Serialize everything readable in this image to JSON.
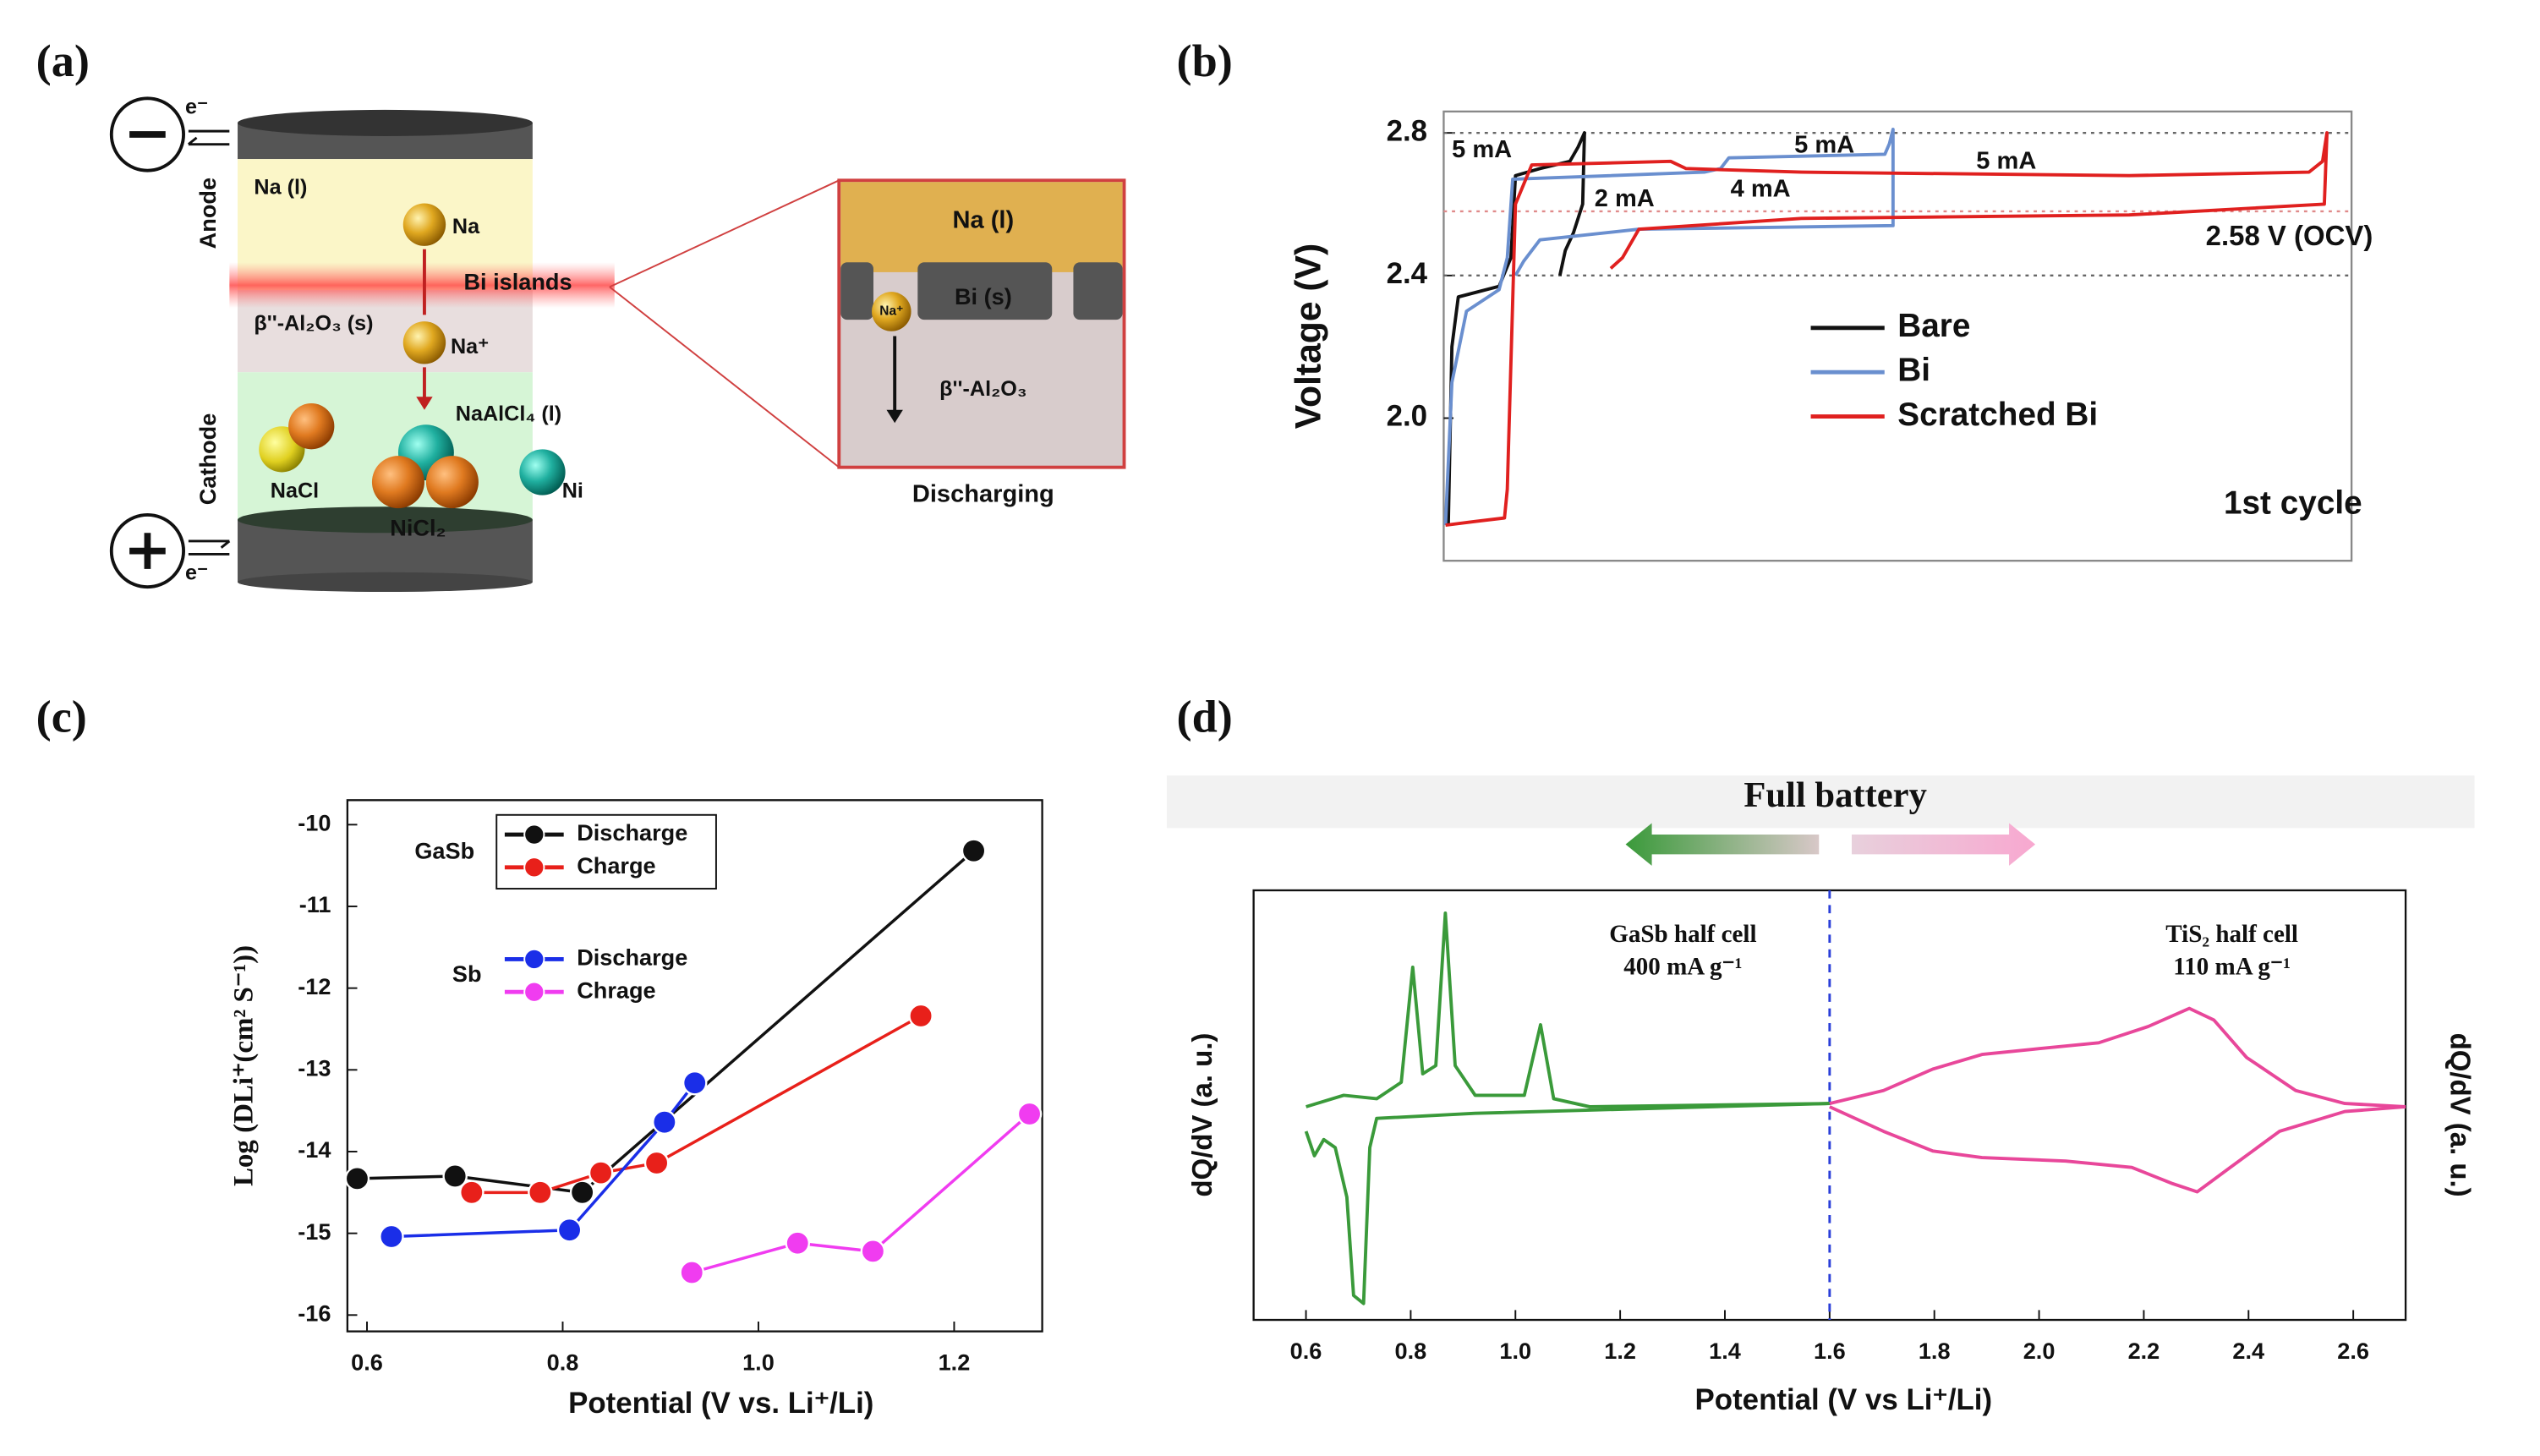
{
  "panel_labels": [
    "(a)",
    "(b)",
    "(c)",
    "(d)"
  ],
  "diagram": {
    "electron_top": "e⁻",
    "electron_bottom": "e⁻",
    "anode": "Anode",
    "cathode": "Cathode",
    "na_liquid": "Na (l)",
    "na": "Na",
    "bi_islands": "Bi islands",
    "electrolyte": "β''-Al₂O₃ (s)",
    "na_ion": "Na⁺",
    "naalcl4": "NaAlCl₄ (l)",
    "nacl": "NaCl",
    "ni": "Ni",
    "nicl2": "NiCl₂",
    "inset": {
      "na_liquid": "Na (l)",
      "bi_solid": "Bi (s)",
      "na_ion": "Na⁺",
      "electrolyte": "β''-Al₂O₃",
      "caption": "Discharging"
    }
  },
  "chart_data": [
    {
      "type": "line",
      "ylabel": "Voltage (V)",
      "xlim": [
        0,
        100
      ],
      "ylim": [
        1.6,
        2.86
      ],
      "yticks": [
        {
          "value": 2,
          "label": "2.0"
        },
        2.4,
        2.8
      ],
      "reference_lines": [
        {
          "value": 2.8,
          "color": "#666666"
        },
        {
          "value": 2.58,
          "label": "2.58 V (OCV)",
          "color": "#e08a8a"
        },
        {
          "value": 2.4,
          "color": "#666666"
        }
      ],
      "series": [
        {
          "name": "Bare",
          "color": "#111111",
          "x": [
            0.5,
            0.9,
            1.6,
            6.1,
            7.4,
            7.9,
            10.6,
            13.9,
            14.8,
            15.5,
            15.3,
            14.3,
            13.4,
            12.8
          ],
          "values": [
            1.7,
            2.2,
            2.34,
            2.37,
            2.45,
            2.68,
            2.7,
            2.72,
            2.76,
            2.8,
            2.6,
            2.52,
            2.47,
            2.4
          ]
        },
        {
          "name": "Bi",
          "color": "#6a8fcf",
          "x": [
            0.2,
            0.9,
            2.5,
            6.1,
            7.0,
            7.6,
            28.7,
            30.5,
            31.4,
            48.6,
            49.1,
            49.5,
            49.5,
            21.5,
            10.6,
            8.8,
            7.9
          ],
          "values": [
            1.7,
            2.1,
            2.3,
            2.36,
            2.45,
            2.67,
            2.69,
            2.7,
            2.73,
            2.74,
            2.77,
            2.81,
            2.54,
            2.53,
            2.5,
            2.44,
            2.4
          ]
        },
        {
          "name": "Scratched Bi",
          "color": "#e0201f",
          "x": [
            0.2,
            3.4,
            6.7,
            7.0,
            7.9,
            9.7,
            25.0,
            26.7,
            39.4,
            75.5,
            95.3,
            96.8,
            97.3,
            97.0,
            75.5,
            39.4,
            21.5,
            19.7,
            18.4
          ],
          "values": [
            1.7,
            1.71,
            1.72,
            1.8,
            2.6,
            2.71,
            2.72,
            2.7,
            2.69,
            2.68,
            2.69,
            2.72,
            2.8,
            2.6,
            2.57,
            2.56,
            2.53,
            2.45,
            2.42
          ]
        }
      ],
      "annotations": [
        {
          "text": "5 mA",
          "color": "#111111"
        },
        {
          "text": "5 mA",
          "color": "#6a8fcf"
        },
        {
          "text": "2 mA",
          "color": "#6a8fcf"
        },
        {
          "text": "4 mA",
          "color": "#6a8fcf"
        },
        {
          "text": "5 mA",
          "color": "#e0201f"
        },
        {
          "text": "1st cycle",
          "color": "#111111"
        }
      ],
      "legend": "center-right"
    },
    {
      "type": "line",
      "markers": true,
      "xlabel": "Potential (V vs. Li⁺/Li)",
      "ylabel": "Log  (DLi⁺(cm² S⁻¹))",
      "xlim": [
        0.58,
        1.29
      ],
      "ylim": [
        -16.2,
        -9.7
      ],
      "xticks": [
        0.6,
        0.8,
        {
          "value": 1,
          "label": "1.0"
        },
        1.2
      ],
      "yticks": [
        -10,
        -11,
        -12,
        -13,
        -14,
        -15,
        -16
      ],
      "series": [
        {
          "name": "Discharge",
          "color": "#111111",
          "x": [
            0.59,
            0.69,
            0.82,
            1.22
          ],
          "values": [
            -14.33,
            -14.3,
            -14.5,
            -10.32
          ]
        },
        {
          "name": "Charge",
          "color": "#e8201a",
          "x": [
            0.707,
            0.777,
            0.839,
            0.896,
            1.166
          ],
          "values": [
            -14.5,
            -14.5,
            -14.26,
            -14.14,
            -12.34
          ]
        },
        {
          "name": "Discharge",
          "color": "#1a2ee8",
          "x": [
            0.625,
            0.807,
            0.904,
            0.935
          ],
          "values": [
            -15.04,
            -14.96,
            -13.64,
            -13.16
          ]
        },
        {
          "name": "Chrage",
          "color": "#f03cf0",
          "x": [
            0.932,
            1.04,
            1.117,
            1.277
          ],
          "values": [
            -15.48,
            -15.12,
            -15.22,
            -13.54
          ]
        }
      ],
      "annotations": [
        {
          "text": "GaSb",
          "color": "#111111"
        },
        {
          "text": "Sb",
          "color": "#1a2ee8"
        }
      ],
      "legend": "upper-left"
    },
    {
      "type": "line",
      "title": "Full battery",
      "xlabel": "Potential (V vs Li⁺/Li)",
      "ylabel": "dQ/dV (a. u.)",
      "y2label": "dQ/dV (a. u.)",
      "xlim": [
        0.5,
        2.7
      ],
      "ylim": [
        0,
        100
      ],
      "xticks": [
        0.6,
        0.8,
        {
          "value": 1,
          "label": "1.0"
        },
        1.2,
        1.4,
        1.6,
        1.8,
        {
          "value": 2,
          "label": "2.0"
        },
        2.2,
        2.4,
        2.6
      ],
      "vlines": [
        {
          "value": 1.6,
          "color": "#2a3fd8",
          "dash": true
        }
      ],
      "series": [
        {
          "color": "#3a9a3a",
          "x": [
            0.6,
            0.672,
            0.735,
            0.782,
            0.804,
            0.823,
            0.848,
            0.866,
            0.885,
            0.923,
            1.017,
            1.048,
            1.073,
            1.142,
            1.6
          ],
          "values": [
            49.6,
            52.3,
            51.5,
            55.3,
            82.1,
            57.3,
            59.2,
            94.7,
            59.2,
            52.3,
            52.3,
            68.7,
            51.5,
            49.6,
            50.4
          ]
        },
        {
          "color": "#3a9a3a",
          "x": [
            0.6,
            0.616,
            0.634,
            0.656,
            0.678,
            0.691,
            0.71,
            0.722,
            0.735,
            0.923,
            1.6
          ],
          "values": [
            43.9,
            38.2,
            42.0,
            40.1,
            28.6,
            5.7,
            3.8,
            40.1,
            46.9,
            48.1,
            50.4
          ]
        },
        {
          "color": "#e8479a",
          "x": [
            1.6,
            1.703,
            1.797,
            1.891,
            1.989,
            2.114,
            2.208,
            2.287,
            2.334,
            2.396,
            2.49,
            2.584,
            2.7
          ],
          "values": [
            50.4,
            53.4,
            58.4,
            61.8,
            63.0,
            64.5,
            68.3,
            72.5,
            69.8,
            61.1,
            53.4,
            50.4,
            49.6
          ]
        },
        {
          "color": "#e8479a",
          "x": [
            1.6,
            1.703,
            1.797,
            1.891,
            2.051,
            2.177,
            2.255,
            2.302,
            2.365,
            2.459,
            2.584,
            2.7
          ],
          "values": [
            49.6,
            43.9,
            39.3,
            37.8,
            37.0,
            35.5,
            31.7,
            29.8,
            35.5,
            43.9,
            48.5,
            49.6
          ]
        }
      ],
      "annotations": [
        {
          "text": "GaSb half cell",
          "color": "#3a9a3a"
        },
        {
          "text": "400 mA g⁻¹",
          "color": "#3a9a3a"
        },
        {
          "text": "TiS₂ half cell",
          "color": "#ee6fb0"
        },
        {
          "text": "110 mA g⁻¹",
          "color": "#ee6fb0"
        }
      ]
    }
  ]
}
